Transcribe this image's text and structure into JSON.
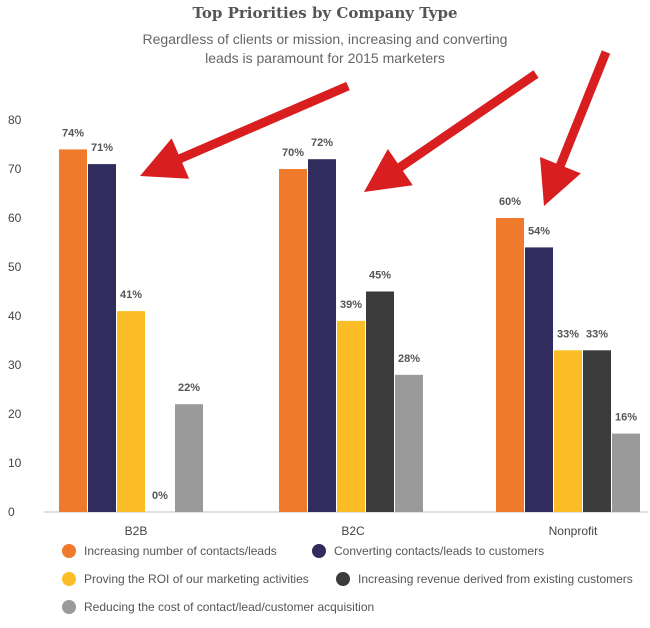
{
  "chart_data": {
    "type": "bar",
    "title": "Top Priorities by Company Type",
    "subtitle_lines": [
      "Regardless of clients or mission, increasing and converting",
      "leads is paramount for 2015 marketers"
    ],
    "categories": [
      "B2B",
      "B2C",
      "Nonprofit"
    ],
    "series": [
      {
        "name": "Increasing number of contacts/leads",
        "color": "#f07a2b",
        "values": [
          74,
          70,
          60
        ],
        "labels": [
          "74%",
          "70%",
          "60%"
        ]
      },
      {
        "name": "Converting contacts/leads to customers",
        "color": "#302d5e",
        "values": [
          71,
          72,
          54
        ],
        "labels": [
          "71%",
          "72%",
          "54%"
        ]
      },
      {
        "name": "Proving the ROI of our marketing activities",
        "color": "#fbbd25",
        "values": [
          41,
          39,
          33
        ],
        "labels": [
          "41%",
          "39%",
          "33%"
        ]
      },
      {
        "name": "Increasing revenue derived from existing customers",
        "color": "#3b3b3b",
        "values": [
          0,
          45,
          33
        ],
        "labels": [
          "0%",
          "45%",
          "33%"
        ]
      },
      {
        "name": "Reducing the cost of contact/lead/customer acquisition",
        "color": "#9a9a9a",
        "values": [
          22,
          28,
          16
        ],
        "labels": [
          "22%",
          "28%",
          "16%"
        ]
      }
    ],
    "ylim": [
      0,
      80
    ],
    "yticks": [
      0,
      10,
      20,
      30,
      40,
      50,
      60,
      70,
      80
    ],
    "grid": false,
    "legend_position": "bottom",
    "annotation_arrow_color": "#d81e1e"
  }
}
